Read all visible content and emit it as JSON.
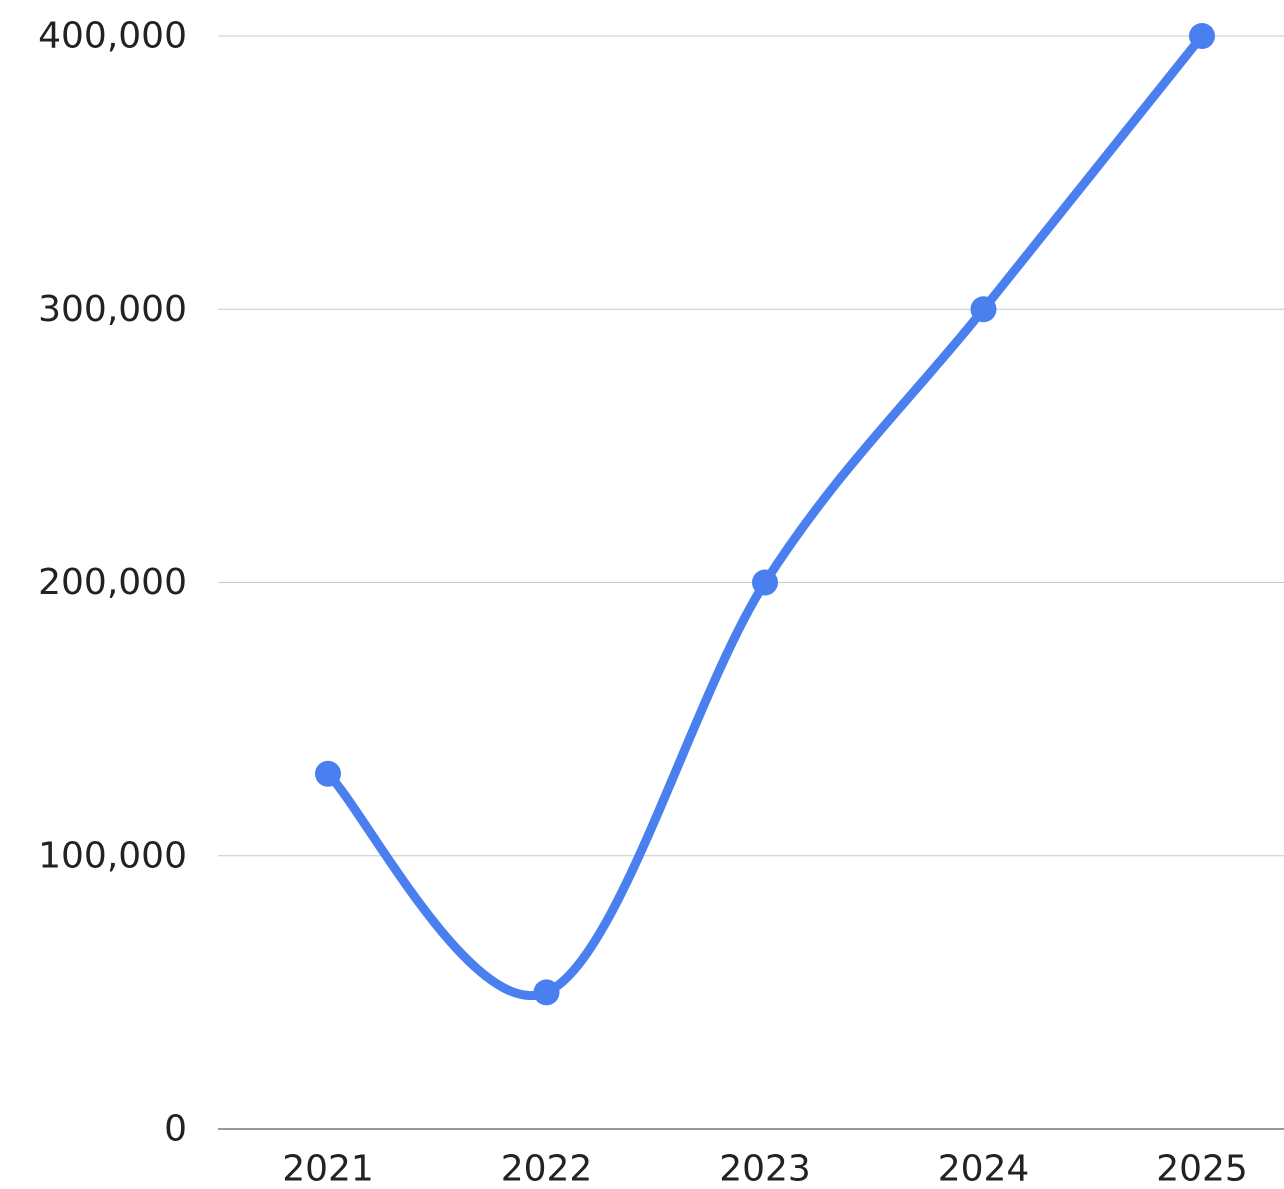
{
  "chart_data": {
    "type": "line",
    "smooth": true,
    "categories": [
      "2021",
      "2022",
      "2023",
      "2024",
      "2025"
    ],
    "series": [
      {
        "values": [
          130000,
          50000,
          200000,
          300000,
          400000
        ],
        "color": "#4a7ff0"
      }
    ],
    "yticks": [
      0,
      100000,
      200000,
      300000,
      400000
    ],
    "ytick_labels": [
      "0",
      "100,000",
      "200,000",
      "300,000",
      "400,000"
    ],
    "ylim": [
      0,
      400000
    ],
    "grid": true,
    "legend": "none"
  }
}
